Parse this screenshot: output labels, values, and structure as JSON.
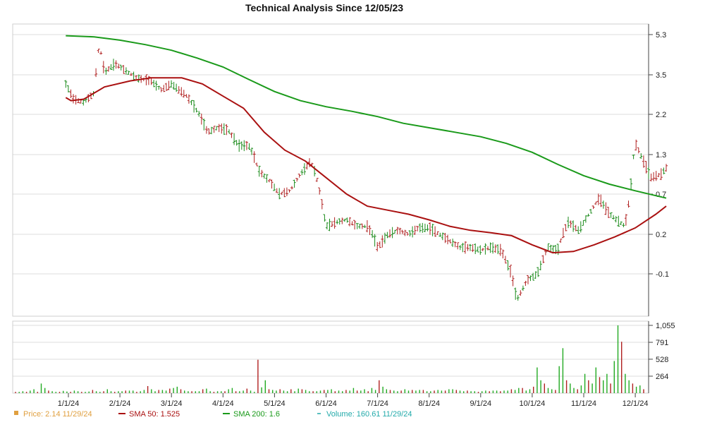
{
  "chart_data": {
    "type": "line",
    "title": "Technical Analysis Since 12/05/23",
    "price_axis": {
      "ticks": [
        5.3,
        3.5,
        2.2,
        1.3,
        0.7,
        0.2,
        -0.1
      ],
      "labels": [
        "5.3",
        "3.5",
        "2.2",
        "1.3",
        "0.7",
        "0.2",
        "-0.1"
      ]
    },
    "volume_axis": {
      "ticks": [
        1055,
        791,
        528,
        264
      ],
      "labels": [
        "1,055",
        "791",
        "528",
        "264"
      ],
      "ylim": [
        0,
        1055
      ]
    },
    "x_axis": {
      "ticks": [
        "1/1/24",
        "2/1/24",
        "3/1/24",
        "4/1/24",
        "5/1/24",
        "6/1/24",
        "7/1/24",
        "8/1/24",
        "9/1/24",
        "10/1/24",
        "11/1/24",
        "12/1/24"
      ]
    },
    "grid": true,
    "series": [
      {
        "name": "SMA 50",
        "color": "#aa1111",
        "points": [
          [
            -0.05,
            2.75
          ],
          [
            0.05,
            2.65
          ],
          [
            0.3,
            2.7
          ],
          [
            0.7,
            3.1
          ],
          [
            1.2,
            3.3
          ],
          [
            1.6,
            3.4
          ],
          [
            2.2,
            3.4
          ],
          [
            2.6,
            3.2
          ],
          [
            3.0,
            2.8
          ],
          [
            3.4,
            2.4
          ],
          [
            3.8,
            1.8
          ],
          [
            4.2,
            1.4
          ],
          [
            4.6,
            1.2
          ],
          [
            5.0,
            0.95
          ],
          [
            5.4,
            0.7
          ],
          [
            5.8,
            0.55
          ],
          [
            6.2,
            0.5
          ],
          [
            6.6,
            0.45
          ],
          [
            7.0,
            0.38
          ],
          [
            7.4,
            0.3
          ],
          [
            7.8,
            0.25
          ],
          [
            8.2,
            0.22
          ],
          [
            8.6,
            0.19
          ],
          [
            9.0,
            0.12
          ],
          [
            9.4,
            0.06
          ],
          [
            9.8,
            0.07
          ],
          [
            10.2,
            0.12
          ],
          [
            10.6,
            0.18
          ],
          [
            11.0,
            0.28
          ],
          [
            11.4,
            0.45
          ],
          [
            11.6,
            0.55
          ]
        ]
      },
      {
        "name": "SMA 200",
        "color": "#1a9a1a",
        "points": [
          [
            -0.05,
            5.25
          ],
          [
            0.5,
            5.2
          ],
          [
            1.0,
            5.05
          ],
          [
            1.5,
            4.85
          ],
          [
            2.0,
            4.6
          ],
          [
            2.5,
            4.25
          ],
          [
            3.0,
            3.85
          ],
          [
            3.5,
            3.35
          ],
          [
            4.0,
            2.95
          ],
          [
            4.5,
            2.65
          ],
          [
            5.0,
            2.45
          ],
          [
            5.5,
            2.3
          ],
          [
            6.0,
            2.15
          ],
          [
            6.5,
            2.0
          ],
          [
            7.0,
            1.9
          ],
          [
            7.5,
            1.8
          ],
          [
            8.0,
            1.7
          ],
          [
            8.5,
            1.55
          ],
          [
            9.0,
            1.35
          ],
          [
            9.5,
            1.15
          ],
          [
            10.0,
            0.98
          ],
          [
            10.5,
            0.85
          ],
          [
            11.0,
            0.75
          ],
          [
            11.6,
            0.65
          ]
        ]
      },
      {
        "name": "Price",
        "color": "#333333",
        "points": [
          [
            -0.05,
            3.2
          ],
          [
            0.1,
            2.7
          ],
          [
            0.3,
            2.6
          ],
          [
            0.5,
            2.9
          ],
          [
            0.6,
            4.9
          ],
          [
            0.7,
            3.6
          ],
          [
            0.9,
            4.0
          ],
          [
            1.1,
            3.7
          ],
          [
            1.3,
            3.4
          ],
          [
            1.6,
            3.3
          ],
          [
            1.8,
            3.0
          ],
          [
            2.0,
            3.2
          ],
          [
            2.3,
            2.8
          ],
          [
            2.5,
            2.3
          ],
          [
            2.7,
            1.8
          ],
          [
            2.9,
            1.9
          ],
          [
            3.1,
            1.85
          ],
          [
            3.3,
            1.5
          ],
          [
            3.5,
            1.5
          ],
          [
            3.7,
            1.05
          ],
          [
            3.9,
            0.9
          ],
          [
            4.1,
            0.7
          ],
          [
            4.3,
            0.75
          ],
          [
            4.5,
            1.0
          ],
          [
            4.7,
            1.2
          ],
          [
            4.8,
            1.0
          ],
          [
            5.0,
            0.3
          ],
          [
            5.2,
            0.35
          ],
          [
            5.4,
            0.38
          ],
          [
            5.6,
            0.3
          ],
          [
            5.8,
            0.3
          ],
          [
            6.0,
            0.1
          ],
          [
            6.2,
            0.2
          ],
          [
            6.4,
            0.25
          ],
          [
            6.6,
            0.2
          ],
          [
            6.8,
            0.28
          ],
          [
            7.0,
            0.28
          ],
          [
            7.2,
            0.2
          ],
          [
            7.4,
            0.15
          ],
          [
            7.6,
            0.1
          ],
          [
            7.8,
            0.1
          ],
          [
            8.0,
            0.08
          ],
          [
            8.2,
            0.1
          ],
          [
            8.4,
            0.08
          ],
          [
            8.6,
            -0.1
          ],
          [
            8.7,
            -0.3
          ],
          [
            8.9,
            -0.15
          ],
          [
            9.1,
            -0.1
          ],
          [
            9.3,
            0.1
          ],
          [
            9.5,
            0.08
          ],
          [
            9.7,
            0.35
          ],
          [
            9.9,
            0.25
          ],
          [
            10.1,
            0.45
          ],
          [
            10.3,
            0.65
          ],
          [
            10.5,
            0.45
          ],
          [
            10.7,
            0.35
          ],
          [
            10.8,
            0.3
          ],
          [
            10.9,
            0.7
          ],
          [
            11.0,
            1.55
          ],
          [
            11.1,
            1.3
          ],
          [
            11.3,
            0.95
          ],
          [
            11.5,
            1.0
          ],
          [
            11.6,
            1.1
          ]
        ]
      },
      {
        "name": "Volume",
        "color": "#22aa22",
        "values": [
          20,
          20,
          30,
          20,
          40,
          60,
          20,
          150,
          80,
          40,
          30,
          20,
          20,
          35,
          25,
          20,
          40,
          30,
          20,
          20,
          25,
          50,
          30,
          20,
          30,
          60,
          30,
          20,
          30,
          30,
          40,
          40,
          40,
          20,
          30,
          50,
          110,
          60,
          30,
          50,
          50,
          40,
          70,
          80,
          100,
          60,
          40,
          30,
          30,
          30,
          30,
          60,
          70,
          30,
          20,
          30,
          30,
          30,
          60,
          80,
          30,
          30,
          40,
          70,
          40,
          20,
          520,
          90,
          200,
          60,
          50,
          40,
          60,
          40,
          30,
          60,
          30,
          70,
          60,
          50,
          30,
          30,
          30,
          40,
          50,
          50,
          60,
          30,
          40,
          30,
          50,
          40,
          80,
          40,
          40,
          60,
          30,
          80,
          50,
          200,
          100,
          60,
          50,
          40,
          30,
          40,
          60,
          40,
          50,
          40,
          50,
          50,
          30,
          30,
          40,
          50,
          40,
          40,
          60,
          60,
          50,
          40,
          30,
          40,
          30,
          30,
          20,
          30,
          40,
          30,
          40,
          40,
          30,
          40,
          40,
          60,
          50,
          80,
          80,
          40,
          60,
          100,
          400,
          200,
          150,
          80,
          60,
          50,
          420,
          700,
          200,
          150,
          80,
          60,
          120,
          300,
          200,
          150,
          400,
          250,
          200,
          300,
          150,
          500,
          1055,
          800,
          300,
          200,
          150,
          100,
          120,
          60
        ]
      }
    ],
    "legend": [
      {
        "label": "Price: 2.14  11/29/24",
        "color": "#e0a040",
        "symbol": "square"
      },
      {
        "label": "SMA 50: 1.525",
        "color": "#aa1111",
        "symbol": "line"
      },
      {
        "label": "SMA 200: 1.6",
        "color": "#1a9a1a",
        "symbol": "line"
      },
      {
        "label": "Volume: 160.61  11/29/24",
        "color": "#22aaaa",
        "symbol": "dash"
      }
    ]
  }
}
